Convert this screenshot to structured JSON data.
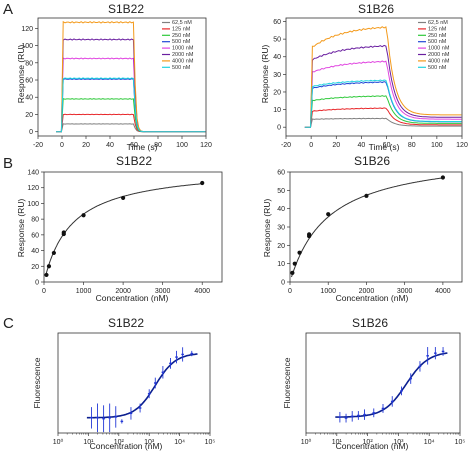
{
  "panel_letters": [
    "A",
    "B",
    "C"
  ],
  "chart_data": [
    {
      "id": "A1",
      "type": "line",
      "title": "S1B22",
      "xlabel": "Time (s)",
      "ylabel": "Response (RU)",
      "xlim": [
        -20,
        120
      ],
      "ylim": [
        -5,
        132
      ],
      "xticks": [
        -20,
        0,
        20,
        40,
        60,
        80,
        100,
        120
      ],
      "yticks": [
        0,
        20,
        40,
        60,
        80,
        100,
        120
      ],
      "legend_position": "top-right",
      "injection": {
        "start": 0,
        "end": 60
      },
      "series": [
        {
          "name": "62,5 nM",
          "plateau": 9,
          "color": "#808080"
        },
        {
          "name": "125 nM",
          "plateau": 20,
          "color": "#e8272a"
        },
        {
          "name": "250 nM",
          "plateau": 38,
          "color": "#2ec93a"
        },
        {
          "name": "500 nM",
          "plateau": 61,
          "color": "#2147d6"
        },
        {
          "name": "1000 nM",
          "plateau": 85,
          "color": "#e045e0"
        },
        {
          "name": "2000 nM",
          "plateau": 107,
          "color": "#6a1fa0"
        },
        {
          "name": "4000 nM",
          "plateau": 127,
          "color": "#f39a1c"
        },
        {
          "name": "500 nM",
          "plateau": 62,
          "color": "#1fd3e0"
        }
      ]
    },
    {
      "id": "A2",
      "type": "line",
      "title": "S1B26",
      "xlabel": "Time (s)",
      "ylabel": "Response (RU)",
      "xlim": [
        -20,
        120
      ],
      "ylim": [
        -5,
        62
      ],
      "xticks": [
        -20,
        0,
        20,
        40,
        60,
        80,
        100,
        120
      ],
      "yticks": [
        0,
        10,
        20,
        30,
        40,
        50,
        60
      ],
      "legend_position": "top-right",
      "injection": {
        "start": 0,
        "end": 60
      },
      "series": [
        {
          "name": "62,5 nM",
          "start": 4.5,
          "plateau": 5,
          "color": "#808080"
        },
        {
          "name": "125 nM",
          "start": 9,
          "plateau": 11,
          "color": "#e8272a"
        },
        {
          "name": "250 nM",
          "start": 15,
          "plateau": 18,
          "color": "#2ec93a"
        },
        {
          "name": "500 nM",
          "start": 22,
          "plateau": 26,
          "color": "#2147d6"
        },
        {
          "name": "1000 nM",
          "start": 31,
          "plateau": 38,
          "color": "#e045e0"
        },
        {
          "name": "2000 nM",
          "start": 38,
          "plateau": 47,
          "color": "#6a1fa0"
        },
        {
          "name": "4000 nM",
          "start": 45,
          "plateau": 58,
          "color": "#f39a1c"
        },
        {
          "name": "500 nM",
          "start": 23,
          "plateau": 27,
          "color": "#1fd3e0"
        }
      ]
    },
    {
      "id": "B1",
      "type": "scatter",
      "title": "S1B22",
      "xlabel": "Concentration (nM)",
      "ylabel": "Response (RU)",
      "xlim": [
        0,
        4500
      ],
      "ylim": [
        0,
        140
      ],
      "xticks": [
        0,
        1000,
        2000,
        3000,
        4000
      ],
      "yticks": [
        0,
        20,
        40,
        60,
        80,
        100,
        120,
        140
      ],
      "points": [
        [
          62.5,
          9
        ],
        [
          125,
          20
        ],
        [
          250,
          37
        ],
        [
          500,
          61
        ],
        [
          500,
          63
        ],
        [
          1000,
          85
        ],
        [
          2000,
          107
        ],
        [
          4000,
          126
        ]
      ],
      "fit": {
        "model": "one-site binding",
        "bmax": 147,
        "kd": 700
      }
    },
    {
      "id": "B2",
      "type": "scatter",
      "title": "S1B26",
      "xlabel": "Concentration (nM)",
      "ylabel": "Response (RU)",
      "xlim": [
        0,
        4500
      ],
      "ylim": [
        0,
        60
      ],
      "xticks": [
        0,
        1000,
        2000,
        3000,
        4000
      ],
      "yticks": [
        0,
        10,
        20,
        30,
        40,
        50,
        60
      ],
      "points": [
        [
          62.5,
          5
        ],
        [
          125,
          10
        ],
        [
          250,
          16
        ],
        [
          500,
          25
        ],
        [
          500,
          26
        ],
        [
          1000,
          37
        ],
        [
          2000,
          47
        ],
        [
          4000,
          57
        ]
      ],
      "fit": {
        "model": "one-site binding",
        "bmax": 71,
        "kd": 1000
      }
    },
    {
      "id": "C1",
      "type": "scatter",
      "title": "S1B22",
      "xlabel": "Concentration (nM)",
      "ylabel": "Fluorescence",
      "xscale": "log",
      "xlim": [
        0,
        5
      ],
      "ylim": [
        480,
        1040
      ],
      "xticks": [
        0,
        1,
        2,
        3,
        4,
        5
      ],
      "xtick_labels": [
        "10⁰",
        "10¹",
        "10²",
        "10³",
        "10⁴",
        "10⁵"
      ],
      "points": [
        [
          1.1,
          565,
          60
        ],
        [
          1.3,
          565,
          80
        ],
        [
          1.5,
          560,
          75
        ],
        [
          1.7,
          565,
          80
        ],
        [
          1.9,
          570,
          60
        ],
        [
          2.1,
          545,
          12
        ],
        [
          2.4,
          590,
          35
        ],
        [
          2.7,
          620,
          25
        ],
        [
          3.0,
          700,
          25
        ],
        [
          3.2,
          760,
          30
        ],
        [
          3.45,
          820,
          35
        ],
        [
          3.7,
          870,
          30
        ],
        [
          3.9,
          905,
          35
        ],
        [
          4.1,
          920,
          40
        ],
        [
          4.4,
          925,
          15
        ]
      ],
      "fit": {
        "model": "sigmoid",
        "bottom": 565,
        "top": 928,
        "ec50_log": 3.2,
        "hill": 1.3
      }
    },
    {
      "id": "C2",
      "type": "scatter",
      "title": "S1B26",
      "xlabel": "Concentration (nM)",
      "ylabel": "Fluorescence",
      "xscale": "log",
      "xlim": [
        0,
        5
      ],
      "ylim": [
        460,
        1030
      ],
      "xticks": [
        0,
        1,
        2,
        3,
        4,
        5
      ],
      "xtick_labels": [
        "10⁰",
        "10¹",
        "10²",
        "10³",
        "10⁴",
        "10⁵"
      ],
      "points": [
        [
          1.1,
          550,
          30
        ],
        [
          1.3,
          545,
          25
        ],
        [
          1.5,
          555,
          30
        ],
        [
          1.7,
          560,
          25
        ],
        [
          1.9,
          565,
          30
        ],
        [
          2.2,
          575,
          25
        ],
        [
          2.5,
          600,
          25
        ],
        [
          2.8,
          640,
          30
        ],
        [
          3.1,
          700,
          25
        ],
        [
          3.4,
          770,
          30
        ],
        [
          3.7,
          840,
          30
        ],
        [
          3.95,
          900,
          50
        ],
        [
          4.2,
          915,
          35
        ],
        [
          4.45,
          925,
          25
        ]
      ],
      "fit": {
        "model": "sigmoid",
        "bottom": 550,
        "top": 925,
        "ec50_log": 3.25,
        "hill": 1.2
      }
    }
  ]
}
